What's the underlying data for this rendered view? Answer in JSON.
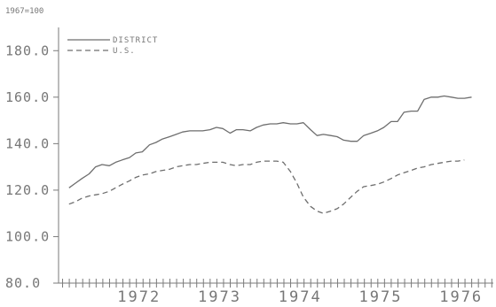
{
  "page_note": "1967=100",
  "chart_data": {
    "type": "line",
    "title": "",
    "xlabel": "",
    "ylabel": "",
    "index_note": "1967=100",
    "ylim": [
      80,
      190
    ],
    "xlim": [
      1971.55,
      1976.95
    ],
    "yticks": [
      80,
      100,
      120,
      140,
      160,
      180
    ],
    "ytick_labels": [
      "80.0",
      "100.0",
      "120.0",
      "140.0",
      "160.0",
      "180.0"
    ],
    "xticks": [
      1972,
      1973,
      1974,
      1975,
      1976
    ],
    "xtick_labels": [
      "1972",
      "1973",
      "1974",
      "1975",
      "1976"
    ],
    "minor_tick_step": 0.0833,
    "grid": false,
    "legend_position": "top-left",
    "series": [
      {
        "name": "DISTRICT",
        "style": "solid",
        "x": [
          1971.63,
          1971.71,
          1971.79,
          1971.88,
          1971.96,
          1972.04,
          1972.13,
          1972.21,
          1972.29,
          1972.38,
          1972.46,
          1972.54,
          1972.63,
          1972.71,
          1972.79,
          1972.88,
          1972.96,
          1973.04,
          1973.13,
          1973.21,
          1973.29,
          1973.38,
          1973.46,
          1973.54,
          1973.63,
          1973.71,
          1973.79,
          1973.88,
          1973.96,
          1974.04,
          1974.13,
          1974.21,
          1974.29,
          1974.38,
          1974.46,
          1974.54,
          1974.63,
          1974.71,
          1974.79,
          1974.88,
          1974.96,
          1975.04,
          1975.13,
          1975.21,
          1975.29,
          1975.38,
          1975.46,
          1975.54,
          1975.63,
          1975.71,
          1975.79,
          1975.88,
          1975.96,
          1976.04,
          1976.13,
          1976.21,
          1976.29,
          1976.38,
          1976.46,
          1976.54,
          1976.63
        ],
        "values": [
          121,
          123,
          125,
          127,
          130,
          131,
          130.5,
          132,
          133,
          134,
          136,
          136.5,
          139.5,
          140.5,
          142,
          143,
          144,
          145,
          145.5,
          145.5,
          145.5,
          146,
          147,
          146.5,
          144.5,
          146,
          146,
          145.5,
          147,
          148,
          148.5,
          148.5,
          149,
          148.5,
          148.5,
          149,
          146,
          143.5,
          144,
          143.5,
          143,
          141.5,
          141,
          141,
          143.5,
          144.5,
          145.5,
          147,
          149.5,
          149.5,
          153.5,
          154,
          154,
          159,
          160,
          160,
          160.5,
          160,
          159.5,
          159.5,
          160
        ]
      },
      {
        "name": "U.S.",
        "style": "dashed",
        "x": [
          1971.63,
          1971.71,
          1971.79,
          1971.88,
          1971.96,
          1972.04,
          1972.13,
          1972.21,
          1972.29,
          1972.38,
          1972.46,
          1972.54,
          1972.63,
          1972.71,
          1972.79,
          1972.88,
          1972.96,
          1973.04,
          1973.13,
          1973.21,
          1973.29,
          1973.38,
          1973.46,
          1973.54,
          1973.63,
          1973.71,
          1973.79,
          1973.88,
          1973.96,
          1974.04,
          1974.13,
          1974.21,
          1974.29,
          1974.38,
          1974.46,
          1974.54,
          1974.63,
          1974.71,
          1974.79,
          1974.88,
          1974.96,
          1975.04,
          1975.13,
          1975.21,
          1975.29,
          1975.38,
          1975.46,
          1975.54,
          1975.63,
          1975.71,
          1975.79,
          1975.88,
          1975.96,
          1976.04,
          1976.13,
          1976.21,
          1976.29,
          1976.38,
          1976.46,
          1976.54
        ],
        "values": [
          114,
          115,
          116.5,
          117.5,
          118,
          118.5,
          119.5,
          121,
          122.5,
          124,
          125.5,
          126.5,
          127,
          128,
          128.5,
          129,
          130,
          130.5,
          131,
          131,
          131.5,
          132,
          132,
          132,
          131,
          130.5,
          131,
          131,
          132,
          132.5,
          132.5,
          132.5,
          132,
          128,
          123,
          117,
          113,
          111,
          110,
          111,
          112,
          114,
          117,
          119.5,
          121.5,
          122,
          122.5,
          123.5,
          125,
          126.5,
          127.5,
          128.5,
          129.5,
          130,
          131,
          131.5,
          132,
          132.5,
          132.5,
          133
        ]
      }
    ]
  }
}
